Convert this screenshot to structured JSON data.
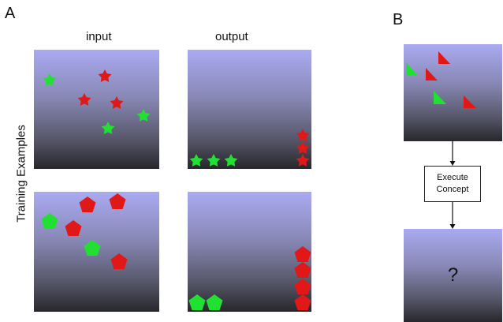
{
  "panel_a": {
    "letter": "A",
    "col_input": "input",
    "col_output": "output",
    "row_label": "Training Examples"
  },
  "panel_b": {
    "letter": "B",
    "box_line1": "Execute",
    "box_line2": "Concept",
    "unknown_output": "?"
  },
  "colors": {
    "red": "#e01818",
    "green": "#22e032",
    "arrow": "#111111"
  },
  "examples": [
    {
      "shape": "star",
      "input": {
        "red": 3,
        "green": 3
      },
      "output": {
        "green_row": 3,
        "red_column": 3
      }
    },
    {
      "shape": "pentagon",
      "input": {
        "red": 4,
        "green": 2
      },
      "output": {
        "green_row": 2,
        "red_column": 4
      }
    }
  ],
  "test_input": {
    "shape": "triangle",
    "red": 4,
    "green": 2
  }
}
